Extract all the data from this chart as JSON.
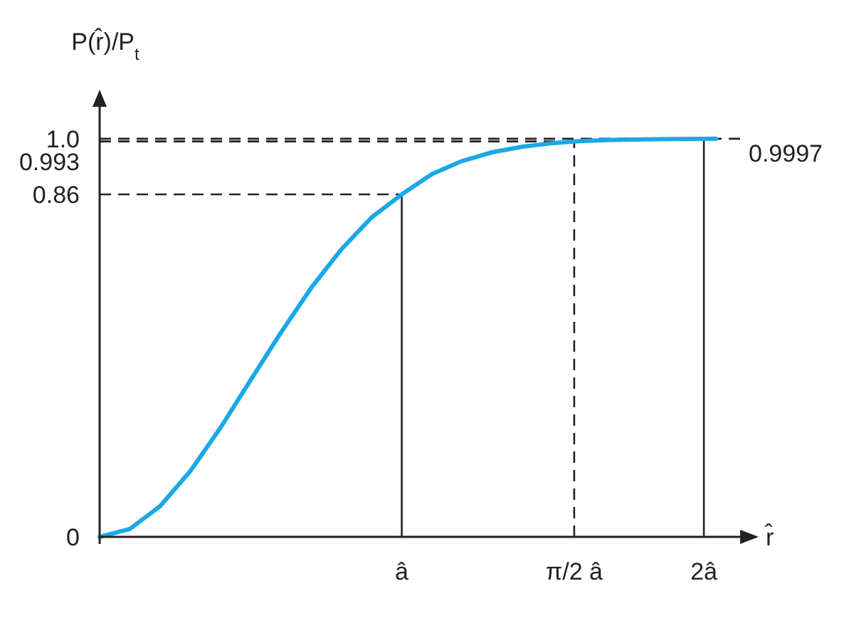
{
  "chart_data": {
    "type": "line",
    "xlabel": "r̂",
    "ylabel": "P(r̂)/P$_{t}$",
    "x": [
      0,
      0.1,
      0.2,
      0.3,
      0.4,
      0.5,
      0.6,
      0.7,
      0.8,
      0.9,
      1,
      1.1,
      1.2,
      1.3,
      1.4,
      1.5,
      1.5708,
      1.6,
      1.7,
      1.8,
      1.9,
      2,
      2.04
    ],
    "series": [
      {
        "color": "#1aa9e6",
        "values": [
          0,
          0.02,
          0.077,
          0.165,
          0.274,
          0.394,
          0.513,
          0.625,
          0.722,
          0.802,
          0.86,
          0.911,
          0.944,
          0.966,
          0.98,
          0.989,
          0.993,
          0.994,
          0.997,
          0.998,
          0.999,
          0.9997,
          1
        ]
      }
    ],
    "xlim": [
      0,
      2.12
    ],
    "ylim": [
      0,
      1.08
    ],
    "xticks": [
      {
        "value": 1,
        "label": "â"
      },
      {
        "value": 1.5708,
        "label": "π/2 â"
      },
      {
        "value": 2,
        "label": "2â"
      }
    ],
    "yticks": [
      0,
      0.86,
      {
        "value": 1,
        "label": "1.0"
      }
    ],
    "ref_lines": [
      {
        "axis": "y",
        "value": 0.86,
        "line_style": "dashed"
      },
      {
        "axis": "y",
        "value": 0.993,
        "label": "0.993",
        "line_style": "dashed"
      },
      {
        "axis": "y",
        "value": 0.9997,
        "label": "0.9997",
        "line_style": "dashed"
      },
      {
        "axis": "x",
        "value": 1,
        "line_style": "solid"
      },
      {
        "axis": "x",
        "value": 1.5708,
        "line_style": "dashed"
      },
      {
        "axis": "x",
        "value": 2,
        "line_style": "solid"
      }
    ],
    "grid": false,
    "marker": "none",
    "line_style": "solid"
  }
}
